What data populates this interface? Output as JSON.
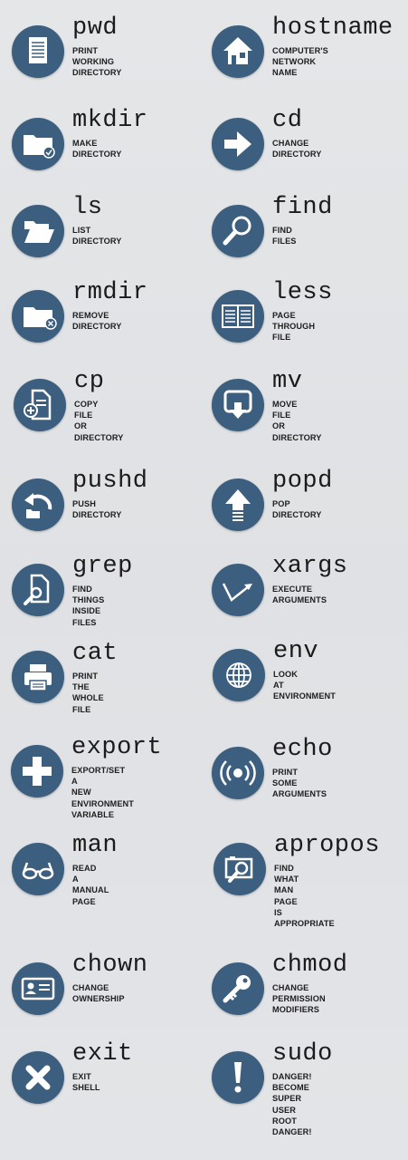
{
  "colors": {
    "icon_bg": "#3d5f7f",
    "icon_fg": "#ffffff",
    "background": "#e2e4e7",
    "text": "#1e1e1e"
  },
  "commands": [
    {
      "name": "pwd",
      "desc": "PRINT\nWORKING\nDIRECTORY",
      "icon": "document-icon"
    },
    {
      "name": "hostname",
      "desc": "COMPUTER'S\nNETWORK\nNAME",
      "icon": "house-icon"
    },
    {
      "name": "mkdir",
      "desc": "MAKE\nDIRECTORY",
      "icon": "folder-check-icon"
    },
    {
      "name": "cd",
      "desc": "CHANGE\nDIRECTORY",
      "icon": "arrow-right-icon"
    },
    {
      "name": "ls",
      "desc": "LIST\nDIRECTORY",
      "icon": "open-folder-icon"
    },
    {
      "name": "find",
      "desc": "FIND\nFILES",
      "icon": "magnifier-icon"
    },
    {
      "name": "rmdir",
      "desc": "REMOVE\nDIRECTORY",
      "icon": "folder-remove-icon"
    },
    {
      "name": "less",
      "desc": "PAGE\nTHROUGH\nFILE",
      "icon": "open-book-icon"
    },
    {
      "name": "cp",
      "desc": "COPY\nFILE\nOR\nDIRECTORY",
      "icon": "file-add-icon"
    },
    {
      "name": "mv",
      "desc": "MOVE\nFILE\nOR\nDIRECTORY",
      "icon": "move-down-icon"
    },
    {
      "name": "pushd",
      "desc": "PUSH\nDIRECTORY",
      "icon": "undo-folder-icon"
    },
    {
      "name": "popd",
      "desc": "POP\nDIRECTORY",
      "icon": "arrow-up-icon"
    },
    {
      "name": "grep",
      "desc": "FIND\nTHINGS\nINSIDE\nFILES",
      "icon": "file-search-icon"
    },
    {
      "name": "xargs",
      "desc": "EXECUTE\nARGUMENTS",
      "icon": "check-arrow-icon"
    },
    {
      "name": "cat",
      "desc": "PRINT\nTHE\nWHOLE\nFILE",
      "icon": "printer-icon"
    },
    {
      "name": "env",
      "desc": "LOOK\nAT\nENVIRONMENT",
      "icon": "globe-icon"
    },
    {
      "name": "export",
      "desc": "EXPORT/SET\nA\nNEW\nENVIRONMENT\nVARIABLE",
      "icon": "plus-icon"
    },
    {
      "name": "echo",
      "desc": "PRINT\nSOME\nARGUMENTS",
      "icon": "broadcast-icon"
    },
    {
      "name": "man",
      "desc": "READ\nA\nMANUAL\nPAGE",
      "icon": "glasses-icon"
    },
    {
      "name": "apropos",
      "desc": "FIND\nWHAT\nMAN\nPAGE\nIS\nAPPROPRIATE",
      "icon": "image-search-icon"
    },
    {
      "name": "chown",
      "desc": "CHANGE\nOWNERSHIP",
      "icon": "id-card-icon"
    },
    {
      "name": "chmod",
      "desc": "CHANGE\nPERMISSION\nMODIFIERS",
      "icon": "key-icon"
    },
    {
      "name": "exit",
      "desc": "EXIT\nSHELL",
      "icon": "x-icon"
    },
    {
      "name": "sudo",
      "desc": "DANGER!\nBECOME\nSUPER\nUSER\nROOT\nDANGER!",
      "icon": "exclamation-icon"
    }
  ]
}
